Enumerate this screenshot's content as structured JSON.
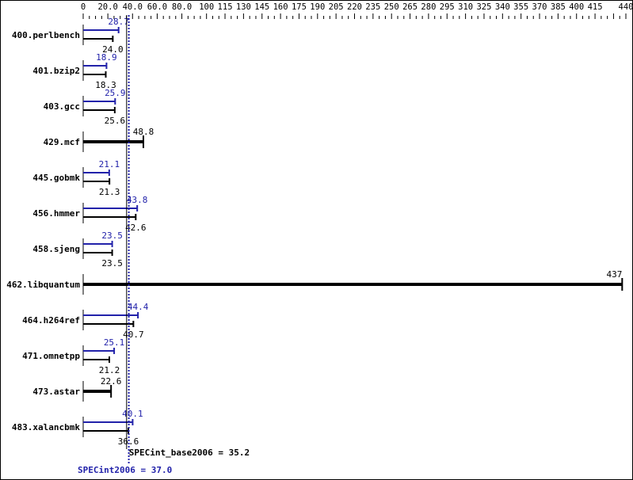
{
  "chart_data": {
    "type": "bar",
    "orientation": "horizontal",
    "x_ticks": [
      "0",
      "20.0",
      "40.0",
      "60.0",
      "80.0",
      "100",
      "115",
      "130",
      "145",
      "160",
      "175",
      "190",
      "205",
      "220",
      "235",
      "250",
      "265",
      "280",
      "295",
      "310",
      "325",
      "340",
      "355",
      "370",
      "385",
      "400",
      "415",
      "440"
    ],
    "xlim": [
      0,
      440
    ],
    "categories": [
      "400.perlbench",
      "401.bzip2",
      "403.gcc",
      "429.mcf",
      "445.gobmk",
      "456.hmmer",
      "458.sjeng",
      "462.libquantum",
      "464.h264ref",
      "471.omnetpp",
      "473.astar",
      "483.xalancbmk"
    ],
    "series": [
      {
        "name": "SPECint_base2006",
        "color": "#000000",
        "values": [
          24.0,
          18.3,
          25.6,
          48.8,
          21.3,
          42.6,
          23.5,
          437,
          40.7,
          21.2,
          22.6,
          36.6
        ]
      },
      {
        "name": "SPECint2006",
        "color": "#2222aa",
        "values": [
          28.7,
          18.9,
          25.9,
          null,
          21.1,
          43.8,
          23.5,
          null,
          44.4,
          25.1,
          null,
          40.1
        ]
      }
    ],
    "value_labels": {
      "base": [
        "24.0",
        "18.3",
        "25.6",
        "48.8",
        "21.3",
        "42.6",
        "23.5",
        "437",
        "40.7",
        "21.2",
        "22.6",
        "36.6"
      ],
      "peak": [
        "28.7",
        "18.9",
        "25.9",
        "",
        "21.1",
        "43.8",
        "23.5",
        "",
        "44.4",
        "25.1",
        "",
        "40.1"
      ]
    },
    "reference_lines": [
      {
        "label": "SPECint_base2006 = 35.2",
        "value": 35.2,
        "color": "#000000",
        "style": "solid"
      },
      {
        "label": "SPECint2006 = 37.0",
        "value": 37.0,
        "color": "#2222aa",
        "style": "dotted"
      }
    ],
    "grid": false
  }
}
